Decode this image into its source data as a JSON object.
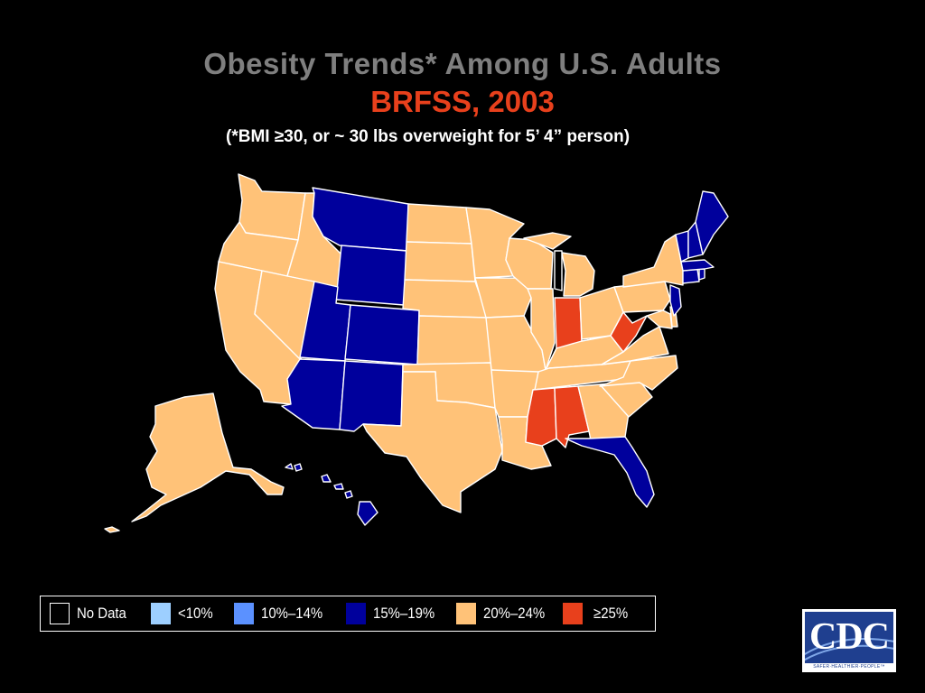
{
  "title": "Obesity Trends* Among U.S. Adults",
  "subtitle": "BRFSS, 2003",
  "note": "(*BMI ≥30, or ~ 30 lbs overweight for 5’ 4” person)",
  "colors": {
    "no_data": "#000000",
    "lt10": "#9dcfff",
    "r10_14": "#5b91ff",
    "r15_19": "#00009c",
    "r20_24": "#ffc278",
    "ge25": "#e8401c"
  },
  "legend": [
    {
      "key": "no_data",
      "label": "No Data"
    },
    {
      "key": "lt10",
      "label": "<10%"
    },
    {
      "key": "r10_14",
      "label": "10%–14%"
    },
    {
      "key": "r15_19",
      "label": "15%–19%"
    },
    {
      "key": "r20_24",
      "label": "20%–24%"
    },
    {
      "key": "ge25",
      "label": "≥25%"
    }
  ],
  "logo": {
    "text": "CDC",
    "tagline": "SAFER·HEALTHIER·PEOPLE™"
  }
}
